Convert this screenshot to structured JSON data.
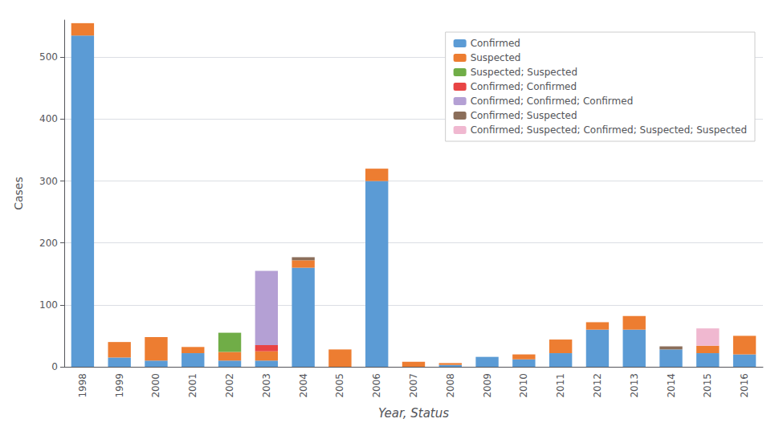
{
  "chart_data": {
    "type": "bar",
    "stacked": true,
    "categories": [
      "1998",
      "1999",
      "2000",
      "2001",
      "2002",
      "2003",
      "2004",
      "2005",
      "2006",
      "2007",
      "2008",
      "2009",
      "2010",
      "2011",
      "2012",
      "2013",
      "2014",
      "2015",
      "2016"
    ],
    "series": [
      {
        "name": "Confirmed",
        "color": "#5b9bd5",
        "values": [
          535,
          15,
          10,
          22,
          10,
          10,
          160,
          0,
          300,
          0,
          3,
          16,
          12,
          22,
          60,
          60,
          28,
          22,
          20
        ]
      },
      {
        "name": "Suspected",
        "color": "#ed7d31",
        "values": [
          20,
          25,
          38,
          10,
          14,
          15,
          12,
          28,
          20,
          8,
          3,
          0,
          8,
          22,
          12,
          22,
          0,
          12,
          30
        ]
      },
      {
        "name": "Suspected; Suspected",
        "color": "#70ad47",
        "values": [
          0,
          0,
          0,
          0,
          31,
          0,
          0,
          0,
          0,
          0,
          0,
          0,
          0,
          0,
          0,
          0,
          0,
          0,
          0
        ]
      },
      {
        "name": "Confirmed; Confirmed",
        "color": "#e84444",
        "values": [
          0,
          0,
          0,
          0,
          0,
          10,
          0,
          0,
          0,
          0,
          0,
          0,
          0,
          0,
          0,
          0,
          0,
          0,
          0
        ]
      },
      {
        "name": "Confirmed; Confirmed; Confirmed",
        "color": "#b4a0d4",
        "values": [
          0,
          0,
          0,
          0,
          0,
          120,
          0,
          0,
          0,
          0,
          0,
          0,
          0,
          0,
          0,
          0,
          0,
          0,
          0
        ]
      },
      {
        "name": "Confirmed; Suspected",
        "color": "#8b6e5a",
        "values": [
          0,
          0,
          0,
          0,
          0,
          0,
          5,
          0,
          0,
          0,
          0,
          0,
          0,
          0,
          0,
          0,
          5,
          0,
          0
        ]
      },
      {
        "name": "Confirmed; Suspected; Confirmed; Suspected; Suspected",
        "color": "#f0b8d0",
        "values": [
          0,
          0,
          0,
          0,
          0,
          0,
          0,
          0,
          0,
          0,
          0,
          0,
          0,
          0,
          0,
          0,
          0,
          28,
          0
        ]
      }
    ],
    "xlabel": "Year, Status",
    "ylabel": "Cases",
    "ylim": [
      0,
      560
    ],
    "yticks": [
      0,
      100,
      200,
      300,
      400,
      500
    ],
    "grid": true,
    "legend": "upper right"
  }
}
